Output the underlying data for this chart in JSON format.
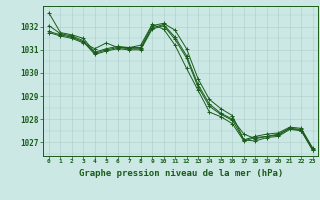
{
  "bg_color": "#cce8e4",
  "grid_color": "#aacccc",
  "line_color": "#1a5c1a",
  "text_color": "#1a5c1a",
  "xlabel": "Graphe pression niveau de la mer (hPa)",
  "xlabel_fontsize": 6.5,
  "ylim": [
    1026.4,
    1032.9
  ],
  "xlim": [
    -0.5,
    23.5
  ],
  "yticks": [
    1027,
    1028,
    1029,
    1030,
    1031,
    1032
  ],
  "xticks": [
    0,
    1,
    2,
    3,
    4,
    5,
    6,
    7,
    8,
    9,
    10,
    11,
    12,
    13,
    14,
    15,
    16,
    17,
    18,
    19,
    20,
    21,
    22,
    23
  ],
  "series": [
    [
      1032.6,
      1031.75,
      1031.65,
      1031.5,
      1030.9,
      1031.05,
      1031.15,
      1031.1,
      1031.1,
      1032.05,
      1032.15,
      1031.85,
      1031.05,
      1029.75,
      1028.85,
      1028.45,
      1028.15,
      1027.1,
      1027.25,
      1027.35,
      1027.4,
      1027.65,
      1027.6,
      1026.75
    ],
    [
      1032.05,
      1031.7,
      1031.6,
      1031.4,
      1030.85,
      1031.0,
      1031.1,
      1031.05,
      1031.05,
      1031.95,
      1032.1,
      1031.55,
      1030.75,
      1029.5,
      1028.65,
      1028.25,
      1028.0,
      1027.35,
      1027.15,
      1027.25,
      1027.3,
      1027.6,
      1027.55,
      1026.7
    ],
    [
      1031.8,
      1031.65,
      1031.55,
      1031.35,
      1030.8,
      1030.95,
      1031.05,
      1031.0,
      1031.0,
      1031.9,
      1032.05,
      1031.45,
      1030.65,
      1029.4,
      1028.55,
      1028.2,
      1027.95,
      1027.1,
      1027.05,
      1027.2,
      1027.25,
      1027.55,
      1027.5,
      1026.65
    ],
    [
      1031.75,
      1031.6,
      1031.5,
      1031.3,
      1031.05,
      1031.3,
      1031.1,
      1031.1,
      1031.2,
      1032.1,
      1031.9,
      1031.2,
      1030.2,
      1029.25,
      1028.3,
      1028.1,
      1027.8,
      1027.05,
      1027.2,
      1027.25,
      1027.35,
      1027.6,
      1027.5,
      1026.65
    ]
  ]
}
